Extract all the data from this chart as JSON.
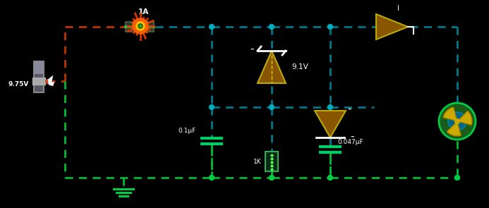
{
  "bg_color": "#000000",
  "wire_red": "#bb3300",
  "wire_teal": "#007788",
  "wire_green": "#00bb33",
  "node_teal": "#00aabb",
  "node_green": "#00cc44",
  "label_9v75": "9.75V",
  "label_1a": "1A",
  "label_91v": "9.1V",
  "label_01uf": "0.1μF",
  "label_1k": "1K",
  "label_047uf": "0.047μF",
  "zener_color": "#885500",
  "scr_color": "#885500",
  "buf_color": "#885500",
  "motor_green": "#1a5c1a",
  "motor_yellow": "#ccaa00",
  "motor_teal": "#006688"
}
